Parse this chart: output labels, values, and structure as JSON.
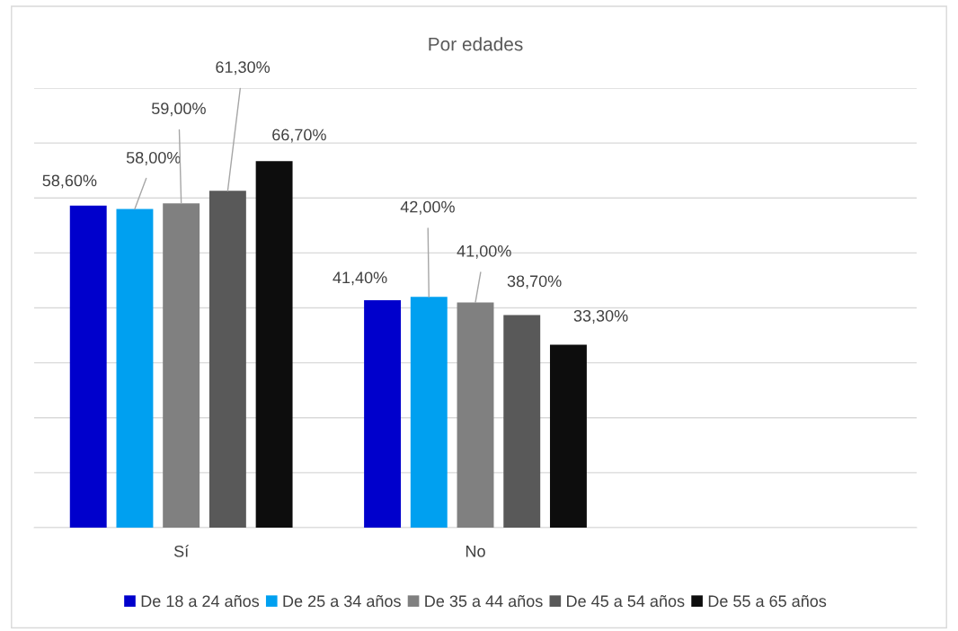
{
  "chart_data": {
    "type": "bar",
    "title": "Por edades",
    "categories": [
      "Sí",
      "No",
      null
    ],
    "series": [
      {
        "name": "De 18 a 24 años",
        "color": "#0000cc",
        "values": [
          58.6,
          41.4,
          null
        ],
        "value_labels": [
          "58,60%",
          "41,40%",
          null
        ]
      },
      {
        "name": "De 25 a 34 años",
        "color": "#00a0f0",
        "values": [
          58.0,
          42.0,
          null
        ],
        "value_labels": [
          "58,00%",
          "42,00%",
          null
        ]
      },
      {
        "name": "De 35 a 44 años",
        "color": "#808080",
        "values": [
          59.0,
          41.0,
          null
        ],
        "value_labels": [
          "59,00%",
          "41,00%",
          null
        ]
      },
      {
        "name": "De 45 a 54 años",
        "color": "#595959",
        "values": [
          61.3,
          38.7,
          null
        ],
        "value_labels": [
          "61,30%",
          "38,70%",
          null
        ]
      },
      {
        "name": "De 55 a 65 años",
        "color": "#0d0d0d",
        "values": [
          66.7,
          33.3,
          null
        ],
        "value_labels": [
          "66,70%",
          "33,30%",
          null
        ]
      }
    ],
    "ylim": [
      0,
      80
    ],
    "yticks": [
      0,
      10,
      20,
      30,
      40,
      50,
      60,
      70,
      80
    ],
    "grid": "y",
    "legend": "bottom",
    "tick_labels": "x"
  }
}
